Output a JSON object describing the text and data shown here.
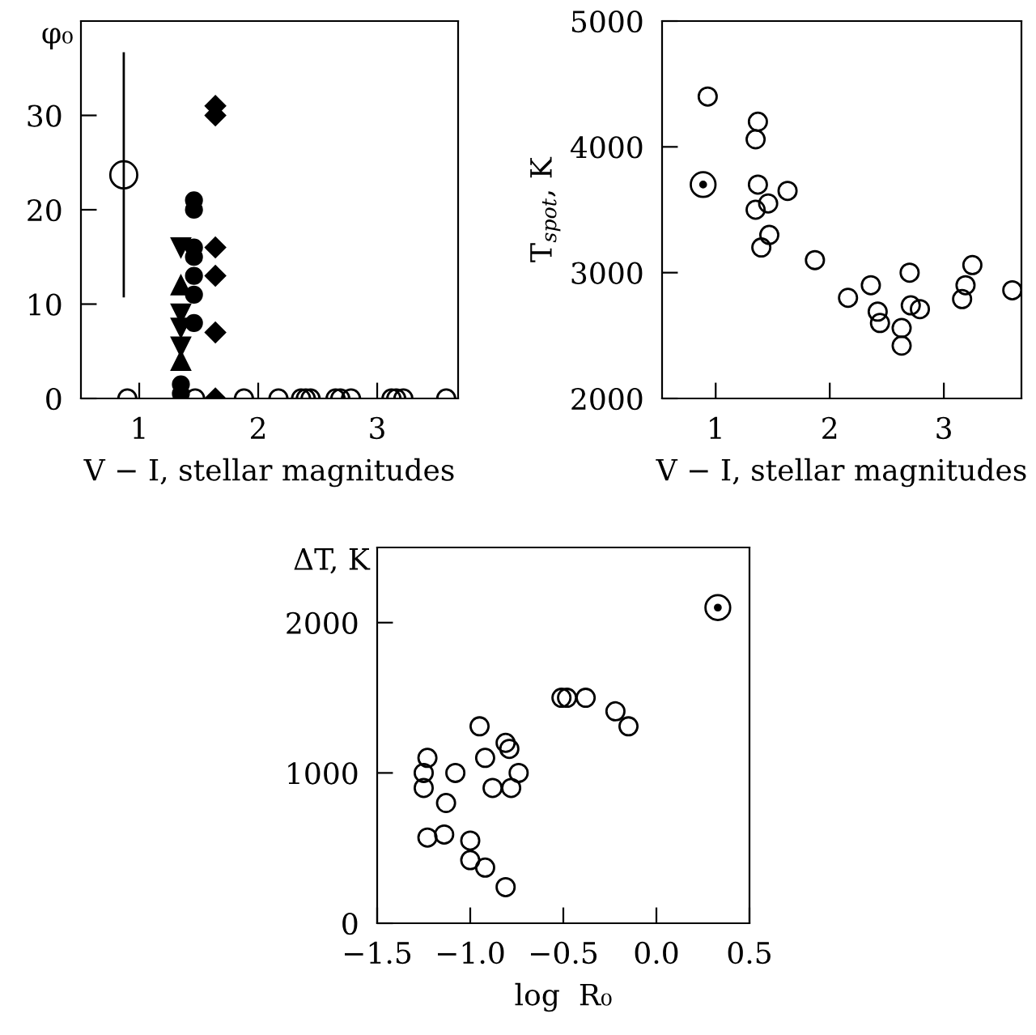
{
  "chart_data": [
    {
      "type": "scatter",
      "xlabel": "V − I, stellar magnitudes",
      "ylabel": "φ₀",
      "xlim": [
        0.51,
        3.68
      ],
      "ylim": [
        0,
        40
      ],
      "xticks": [
        1,
        2,
        3
      ],
      "yticks": [
        0,
        10,
        20,
        30
      ],
      "grid": false,
      "legend": false,
      "series": [
        {
          "color": "#000000",
          "marker": "circle",
          "x": [
            0.9,
            1.47,
            1.88,
            2.17,
            2.36,
            2.4,
            2.44,
            2.65,
            2.69,
            2.78,
            3.12,
            3.16,
            3.22,
            3.58
          ],
          "values": [
            0,
            0,
            0,
            0,
            0,
            0,
            0,
            0,
            0,
            0,
            0,
            0,
            0,
            0
          ]
        },
        {
          "color": "#000000",
          "marker": "circle",
          "x": [
            0.87
          ],
          "values": [
            23.7
          ],
          "errors": [
            13
          ]
        },
        {
          "color": "#000000",
          "marker": "circle_filled",
          "x": [
            1.46,
            1.46,
            1.46,
            1.46,
            1.46,
            1.46,
            1.46,
            1.35,
            1.35
          ],
          "values": [
            21,
            20,
            16,
            15,
            13,
            11,
            8,
            0.5,
            1.5
          ]
        },
        {
          "color": "#000000",
          "marker": "triangle_down",
          "x": [
            1.35,
            1.35,
            1.35,
            1.35
          ],
          "values": [
            16,
            9,
            7.5,
            5.5
          ]
        },
        {
          "color": "#000000",
          "marker": "triangle",
          "x": [
            1.35,
            1.35
          ],
          "values": [
            12,
            4
          ]
        },
        {
          "color": "#000000",
          "marker": "diamond",
          "x": [
            1.64,
            1.64,
            1.64,
            1.64,
            1.64,
            1.64
          ],
          "values": [
            31,
            30,
            16,
            13,
            7,
            0
          ]
        }
      ]
    },
    {
      "type": "scatter",
      "xlabel": "V − I, stellar magnitudes",
      "ylabel": "T$_{spot}$, K",
      "xlim": [
        0.53,
        3.68
      ],
      "ylim": [
        2000,
        5000
      ],
      "xticks": [
        1,
        2,
        3
      ],
      "yticks": [
        2000,
        3000,
        4000,
        5000
      ],
      "grid": false,
      "legend": false,
      "series": [
        {
          "color": "#000000",
          "marker": "circle",
          "x": [
            0.93,
            1.37,
            1.35,
            1.37,
            1.35,
            1.46,
            1.63,
            1.47,
            1.4,
            1.87,
            2.16,
            2.36,
            2.42,
            2.44,
            2.63,
            2.63,
            2.7,
            2.71,
            2.79,
            3.16,
            3.19,
            3.25,
            3.6
          ],
          "values": [
            4400,
            4200,
            4060,
            3700,
            3500,
            3550,
            3650,
            3300,
            3200,
            3100,
            2800,
            2900,
            2690,
            2600,
            2560,
            2420,
            3000,
            2740,
            2710,
            2790,
            2900,
            3060,
            2860
          ]
        },
        {
          "color": "#000000",
          "marker": "circle",
          "x": [
            0.89
          ],
          "values": [
            3700
          ]
        },
        {
          "color": "#000000",
          "marker": "dot",
          "x": [
            0.89
          ],
          "values": [
            3700
          ]
        }
      ]
    },
    {
      "type": "scatter",
      "xlabel": "log  R₀",
      "ylabel": "ΔT, K",
      "xlim": [
        -1.5,
        0.5
      ],
      "ylim": [
        0,
        2500
      ],
      "xticks": [
        {
          "value": -1.5,
          "label": "−1.5"
        },
        {
          "value": -1.0,
          "label": "−1.0"
        },
        {
          "value": -0.5,
          "label": "−0.5"
        },
        {
          "value": 0.0,
          "label": "0.0"
        },
        {
          "value": 0.5,
          "label": "0.5"
        }
      ],
      "yticks": [
        0,
        1000,
        2000
      ],
      "grid": false,
      "legend": false,
      "series": [
        {
          "color": "#000000",
          "marker": "circle",
          "x": [
            -1.23,
            -1.25,
            -1.25,
            -1.13,
            -1.08,
            -1.23,
            -1.14,
            -1.0,
            -1.0,
            -0.92,
            -0.81,
            -0.95,
            -0.92,
            -0.88,
            -0.81,
            -0.79,
            -0.78,
            -0.74,
            -0.51,
            -0.48,
            -0.38,
            -0.22,
            -0.15
          ],
          "values": [
            1100,
            1000,
            900,
            800,
            1000,
            570,
            590,
            550,
            420,
            370,
            240,
            1310,
            1100,
            900,
            1200,
            1160,
            900,
            1000,
            1500,
            1500,
            1500,
            1410,
            1310
          ]
        },
        {
          "color": "#000000",
          "marker": "circle",
          "x": [
            0.33
          ],
          "values": [
            2100
          ]
        },
        {
          "color": "#000000",
          "marker": "dot",
          "x": [
            0.33
          ],
          "values": [
            2100
          ]
        }
      ]
    }
  ]
}
